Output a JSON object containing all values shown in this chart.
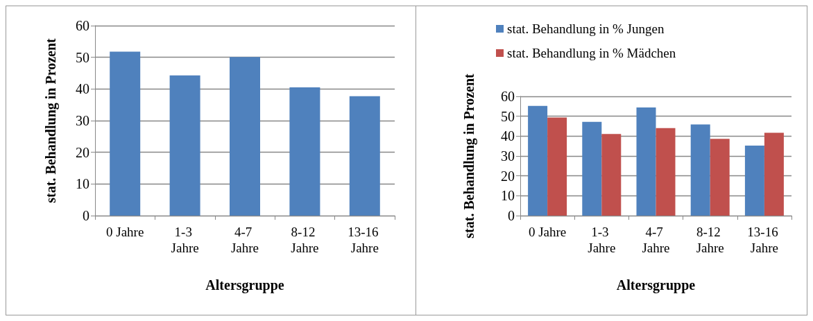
{
  "chart_data": [
    {
      "type": "bar",
      "ylabel": "stat. Behandlung in Prozent",
      "xlabel": "Altersgruppe",
      "categories": [
        "0 Jahre",
        "1-3 Jahre",
        "4-7 Jahre",
        "8-12 Jahre",
        "13-16 Jahre"
      ],
      "series": [
        {
          "color": "#4f81bd",
          "values": [
            51.8,
            44.3,
            50.1,
            40.5,
            37.7
          ]
        }
      ],
      "ylim": [
        0,
        60
      ],
      "yticks": [
        0,
        10,
        20,
        30,
        40,
        50,
        60
      ],
      "grid": "y",
      "legend": false
    },
    {
      "type": "bar",
      "ylabel": "stat. Behandlung in Prozent",
      "xlabel": "Altersgruppe",
      "categories": [
        "0 Jahre",
        "1-3 Jahre",
        "4-7 Jahre",
        "8-12 Jahre",
        "13-16 Jahre"
      ],
      "series": [
        {
          "name": "stat. Behandlung in % Jungen",
          "color": "#4f81bd",
          "values": [
            55.2,
            47.2,
            54.4,
            45.9,
            35.2
          ]
        },
        {
          "name": "stat. Behandlung in % Mädchen",
          "color": "#c0504d",
          "values": [
            49.4,
            41.1,
            44.0,
            38.6,
            41.7
          ]
        }
      ],
      "ylim": [
        0,
        60
      ],
      "yticks": [
        0,
        10,
        20,
        30,
        40,
        50,
        60
      ],
      "grid": "y",
      "legend": "top"
    }
  ]
}
